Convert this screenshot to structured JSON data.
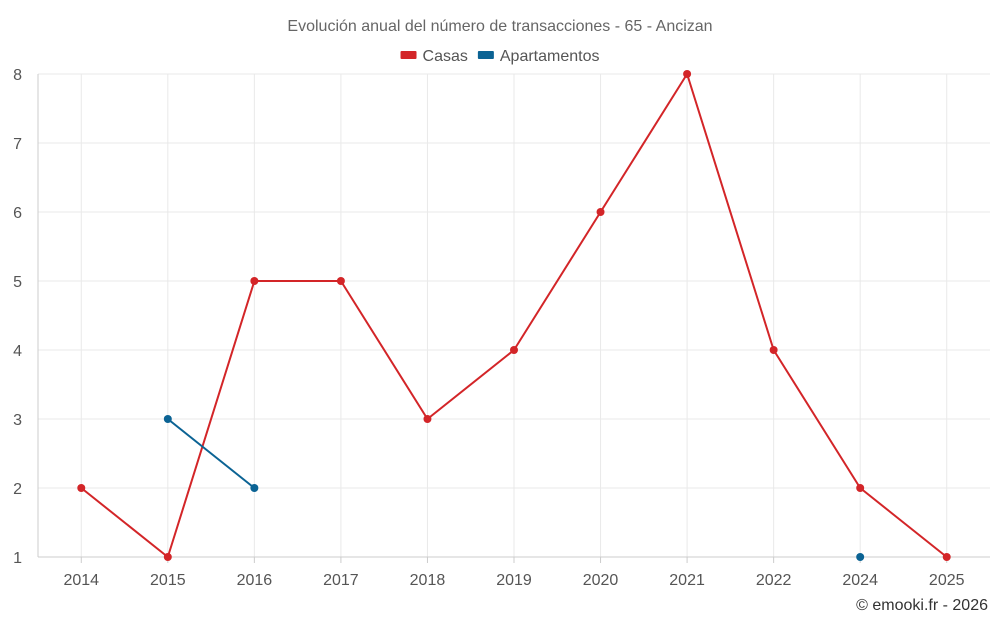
{
  "chart_data": {
    "type": "line",
    "title": "Evolución anual del número de transacciones - 65 - Ancizan",
    "categories": [
      "2014",
      "2015",
      "2016",
      "2017",
      "2018",
      "2019",
      "2020",
      "2021",
      "2022",
      "2024",
      "2025"
    ],
    "ylim": [
      1,
      8
    ],
    "yticks": [
      1,
      2,
      3,
      4,
      5,
      6,
      7,
      8
    ],
    "grid": true,
    "legend_position": "top-center",
    "series": [
      {
        "name": "Casas",
        "color": "#d32528",
        "values": [
          2,
          1,
          5,
          5,
          3,
          4,
          6,
          8,
          4,
          2,
          1
        ]
      },
      {
        "name": "Apartamentos",
        "color": "#0b6394",
        "values": [
          null,
          3,
          2,
          null,
          null,
          null,
          null,
          null,
          null,
          1,
          null
        ]
      }
    ],
    "credit": "© emooki.fr - 2026"
  }
}
